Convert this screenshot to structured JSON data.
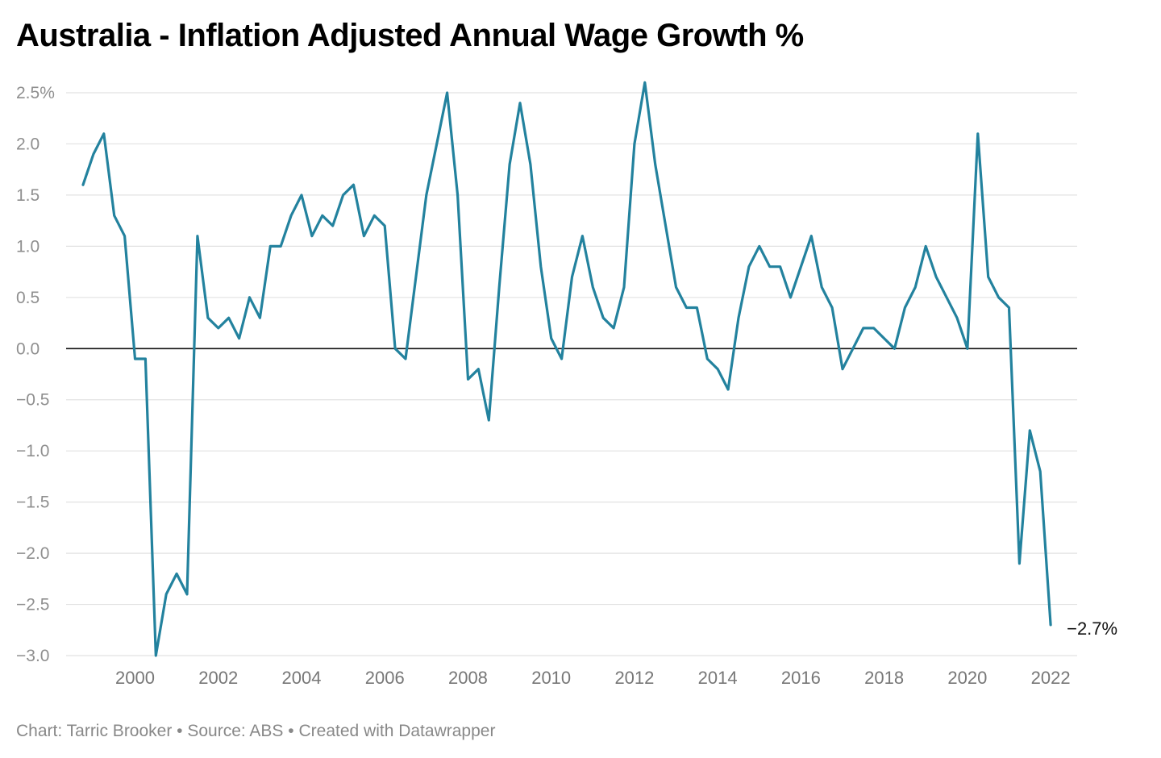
{
  "title": "Australia - Inflation Adjusted Annual Wage Growth %",
  "footer": {
    "byline": "Chart: Tarric Brooker",
    "source": "Source: ABS",
    "tool": "Created with Datawrapper",
    "separator": " • "
  },
  "colors": {
    "line": "#23829e",
    "grid": "#e2e2e2",
    "zero_line": "#111111",
    "tick_text": "#8f8f8f"
  },
  "chart_data": {
    "type": "line",
    "title": "Australia - Inflation Adjusted Annual Wage Growth %",
    "xlabel": "",
    "ylabel": "",
    "ylim": [
      -3.0,
      2.5
    ],
    "xlim": [
      1998.75,
      2022.25
    ],
    "grid": true,
    "y_ticks": [
      {
        "value": 2.5,
        "label": "2.5%"
      },
      {
        "value": 2.0,
        "label": "2.0"
      },
      {
        "value": 1.5,
        "label": "1.5"
      },
      {
        "value": 1.0,
        "label": "1.0"
      },
      {
        "value": 0.5,
        "label": "0.5"
      },
      {
        "value": 0.0,
        "label": "0.0"
      },
      {
        "value": -0.5,
        "label": "−0.5"
      },
      {
        "value": -1.0,
        "label": "−1.0"
      },
      {
        "value": -1.5,
        "label": "−1.5"
      },
      {
        "value": -2.0,
        "label": "−2.0"
      },
      {
        "value": -2.5,
        "label": "−2.5"
      },
      {
        "value": -3.0,
        "label": "−3.0"
      }
    ],
    "x_ticks": [
      {
        "value": 2000,
        "label": "2000"
      },
      {
        "value": 2002,
        "label": "2002"
      },
      {
        "value": 2004,
        "label": "2004"
      },
      {
        "value": 2006,
        "label": "2006"
      },
      {
        "value": 2008,
        "label": "2008"
      },
      {
        "value": 2010,
        "label": "2010"
      },
      {
        "value": 2012,
        "label": "2012"
      },
      {
        "value": 2014,
        "label": "2014"
      },
      {
        "value": 2016,
        "label": "2016"
      },
      {
        "value": 2018,
        "label": "2018"
      },
      {
        "value": 2020,
        "label": "2020"
      },
      {
        "value": 2022,
        "label": "2022"
      }
    ],
    "end_label": "−2.7%",
    "series": [
      {
        "x": [
          1998.75,
          1999.0,
          1999.25,
          1999.5,
          1999.75,
          2000.0,
          2000.25,
          2000.5,
          2000.75,
          2001.0,
          2001.25,
          2001.5,
          2001.75,
          2002.0,
          2002.25,
          2002.5,
          2002.75,
          2003.0,
          2003.25,
          2003.5,
          2003.75,
          2004.0,
          2004.25,
          2004.5,
          2004.75,
          2005.0,
          2005.25,
          2005.5,
          2005.75,
          2006.0,
          2006.25,
          2006.5,
          2006.75,
          2007.0,
          2007.25,
          2007.5,
          2007.75,
          2008.0,
          2008.25,
          2008.5,
          2008.75,
          2009.0,
          2009.25,
          2009.5,
          2009.75,
          2010.0,
          2010.25,
          2010.5,
          2010.75,
          2011.0,
          2011.25,
          2011.5,
          2011.75,
          2012.0,
          2012.25,
          2012.5,
          2012.75,
          2013.0,
          2013.25,
          2013.5,
          2013.75,
          2014.0,
          2014.25,
          2014.5,
          2014.75,
          2015.0,
          2015.25,
          2015.5,
          2015.75,
          2016.0,
          2016.25,
          2016.5,
          2016.75,
          2017.0,
          2017.25,
          2017.5,
          2017.75,
          2018.0,
          2018.25,
          2018.5,
          2018.75,
          2019.0,
          2019.25,
          2019.5,
          2019.75,
          2020.0,
          2020.25,
          2020.5,
          2020.75,
          2021.0,
          2021.25,
          2021.5,
          2021.75,
          2022.0
        ],
        "values": [
          1.6,
          1.9,
          2.1,
          1.3,
          1.1,
          -0.1,
          -0.1,
          -3.0,
          -2.4,
          -2.2,
          -2.4,
          1.1,
          0.3,
          0.2,
          0.3,
          0.1,
          0.5,
          0.3,
          1.0,
          1.0,
          1.3,
          1.5,
          1.1,
          1.3,
          1.2,
          1.5,
          1.6,
          1.1,
          1.3,
          1.2,
          0.0,
          -0.1,
          0.7,
          1.5,
          2.0,
          2.5,
          1.5,
          -0.3,
          -0.2,
          -0.7,
          0.6,
          1.8,
          2.4,
          1.8,
          0.8,
          0.1,
          -0.1,
          0.7,
          1.1,
          0.6,
          0.3,
          0.2,
          0.6,
          2.0,
          2.6,
          1.8,
          1.2,
          0.6,
          0.4,
          0.4,
          -0.1,
          -0.2,
          -0.4,
          0.3,
          0.8,
          1.0,
          0.8,
          0.8,
          0.5,
          0.8,
          1.1,
          0.6,
          0.4,
          -0.2,
          0.0,
          0.2,
          0.2,
          0.1,
          0.0,
          0.4,
          0.6,
          1.0,
          0.7,
          0.5,
          0.3,
          0.0,
          2.1,
          0.7,
          0.5,
          0.4,
          -2.1,
          -0.8,
          -1.2,
          -2.7
        ]
      }
    ]
  }
}
